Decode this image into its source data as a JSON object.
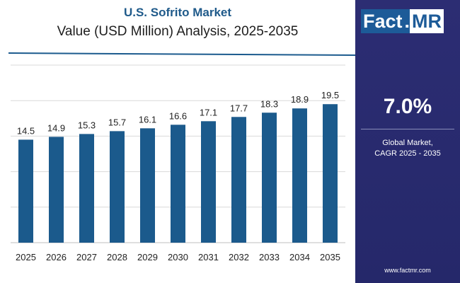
{
  "header": {
    "title": "U.S. Sofrito Market",
    "subtitle": "Value (USD Million) Analysis, 2025-2035"
  },
  "sidebar": {
    "logo_main": "Fact",
    "logo_dot": ".",
    "logo_suffix": "MR",
    "cagr_value": "7.0%",
    "cagr_label_line1": "Global Market,",
    "cagr_label_line2": "CAGR 2025 - 2035",
    "website": "www.factmr.com"
  },
  "colors": {
    "bar": "#1b5a8c",
    "title": "#1f5a8a",
    "panel": "#2c2d73",
    "grid": "#d9d9d9"
  },
  "chart_data": {
    "type": "bar",
    "title": "U.S. Sofrito Market",
    "subtitle": "Value (USD Million) Analysis, 2025-2035",
    "xlabel": "",
    "ylabel": "",
    "categories": [
      "2025",
      "2026",
      "2027",
      "2028",
      "2029",
      "2030",
      "2031",
      "2032",
      "2033",
      "2034",
      "2035"
    ],
    "values": [
      14.5,
      14.9,
      15.3,
      15.7,
      16.1,
      16.6,
      17.1,
      17.7,
      18.3,
      18.9,
      19.5
    ],
    "ylim": [
      0,
      25
    ],
    "grid": true
  }
}
